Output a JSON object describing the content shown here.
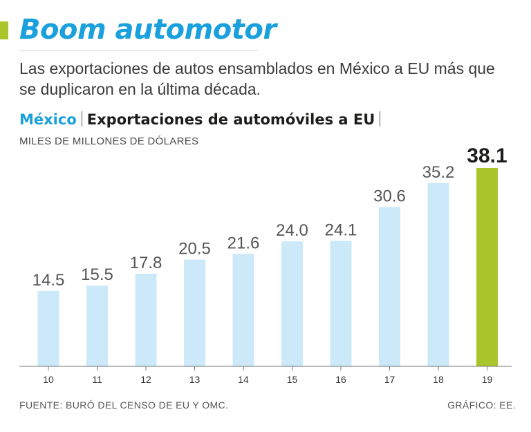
{
  "header": {
    "title": "Boom automotor",
    "subtitle": "Las exportaciones de autos ensamblados en México a EU más que se duplicaron en la última década."
  },
  "chart_header": {
    "country": "México",
    "name": "Exportaciones de automóviles a EU",
    "units": "MILES DE MILLONES DE DÓLARES"
  },
  "footer": {
    "source": "FUENTE: BURÓ DEL CENSO DE EU Y OMC.",
    "credit": "GRÁFICO: EE."
  },
  "colors": {
    "accent_green": "#a8c62b",
    "title_blue": "#1aa0dc",
    "bar_light_blue": "#cbe9f9",
    "highlight_bar": "#a8c62b"
  },
  "chart_data": {
    "type": "bar",
    "title": "Exportaciones de automóviles a EU",
    "ylabel": "MILES DE MILLONES DE DÓLARES",
    "xlabel": "",
    "categories": [
      "10",
      "11",
      "12",
      "13",
      "14",
      "15",
      "16",
      "17",
      "18",
      "19"
    ],
    "values": [
      14.5,
      15.5,
      17.8,
      20.5,
      21.6,
      24.0,
      24.1,
      30.6,
      35.2,
      38.1
    ],
    "value_labels": [
      "14.5",
      "15.5",
      "17.8",
      "20.5",
      "21.6",
      "24.0",
      "24.1",
      "30.6",
      "35.2",
      "38.1"
    ],
    "highlight_index": 9,
    "ylim": [
      0,
      40
    ],
    "grid": false,
    "legend": "none"
  }
}
